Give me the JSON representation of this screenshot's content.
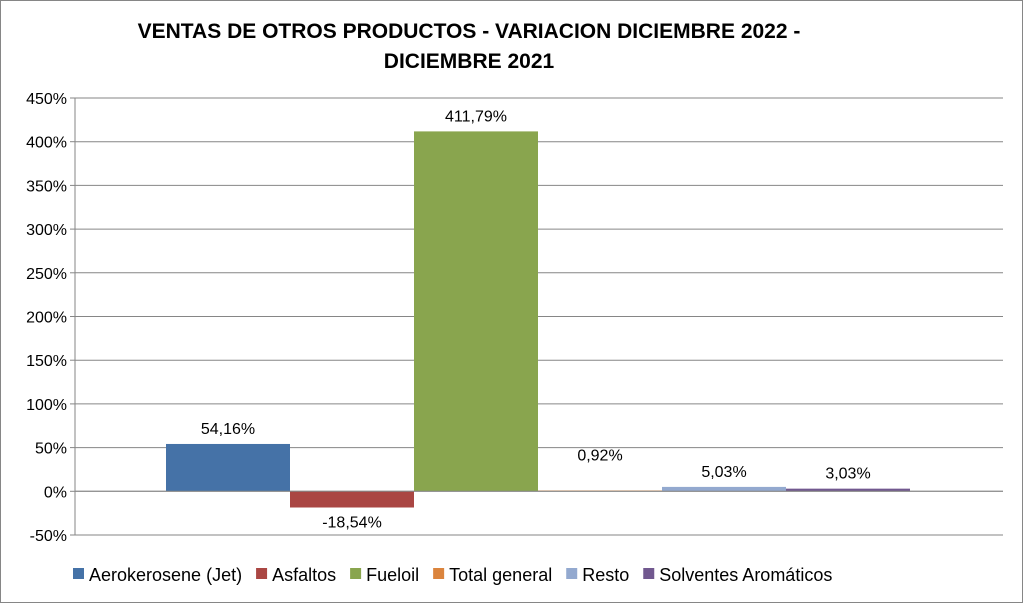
{
  "chart_data": {
    "type": "bar",
    "title_lines": [
      "VENTAS DE OTROS PRODUCTOS - VARIACION DICIEMBRE 2022 -",
      "DICIEMBRE 2021"
    ],
    "xlabel": "",
    "ylabel": "",
    "ylim": [
      -50,
      450
    ],
    "yticks": [
      -50,
      0,
      50,
      100,
      150,
      200,
      250,
      300,
      350,
      400,
      450
    ],
    "ytick_labels": [
      "-50%",
      "0%",
      "50%",
      "100%",
      "150%",
      "200%",
      "250%",
      "300%",
      "350%",
      "400%",
      "450%"
    ],
    "grid": true,
    "legend_position": "bottom",
    "series": [
      {
        "name": "Aerokerosene (Jet)",
        "value": 54.16,
        "label": "54,16%",
        "color": "#4572A7"
      },
      {
        "name": "Asfaltos",
        "value": -18.54,
        "label": "-18,54%",
        "color": "#AA4643"
      },
      {
        "name": "Fueloil",
        "value": 411.79,
        "label": "411,79%",
        "color": "#89A54E"
      },
      {
        "name": "Total general",
        "value": 0.92,
        "label": "0,92%",
        "color": "#DB843D"
      },
      {
        "name": "Resto",
        "value": 5.03,
        "label": "5,03%",
        "color": "#93A9CF"
      },
      {
        "name": "Solventes Aromáticos",
        "value": 3.03,
        "label": "3,03%",
        "color": "#71588F"
      }
    ]
  }
}
